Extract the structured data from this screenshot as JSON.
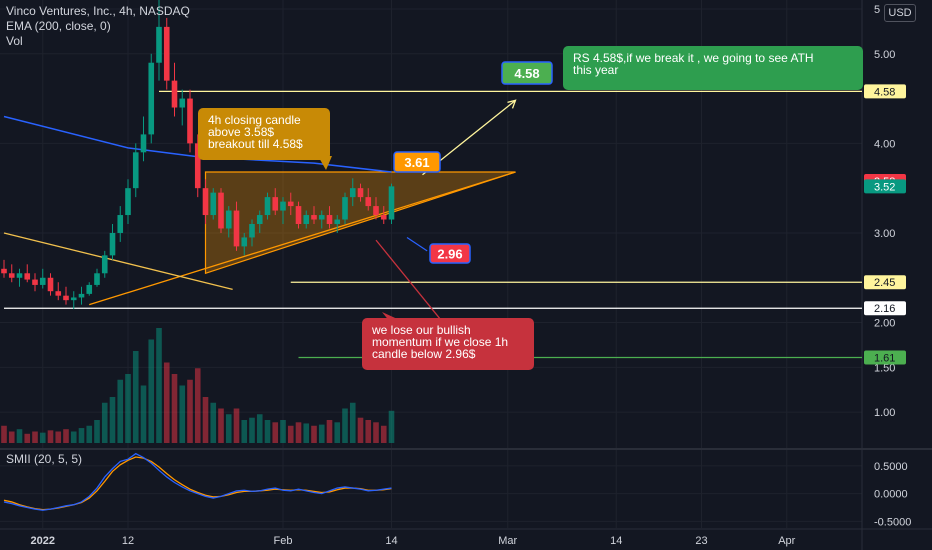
{
  "header": {
    "symbol_line": "Vinco Ventures, Inc., 4h, NASDAQ",
    "ema_label": "EMA (200, close, 0)",
    "vol_label": "Vol",
    "currency": "USD"
  },
  "oscillator": {
    "label": "SMII (20, 5, 5)",
    "ticks": [
      "0.5000",
      "0.0000",
      "-0.5000"
    ],
    "tick_values": [
      0.5,
      0.0,
      -0.5
    ],
    "range": [
      -0.62,
      0.75
    ]
  },
  "chart_data": {
    "type": "candlestick",
    "title": "Vinco Ventures, Inc., 4h, NASDAQ",
    "price_ticks": [
      "5",
      "5.00",
      "4.00",
      "3.00",
      "2.00",
      "1.50",
      "1.00"
    ],
    "price_tick_values": [
      5.5,
      5.0,
      4.0,
      3.0,
      2.0,
      1.5,
      1.0
    ],
    "ylim": [
      0.6,
      5.6
    ],
    "x_ticks": [
      "2022",
      "12",
      "Feb",
      "14",
      "Mar",
      "14",
      "23",
      "Apr"
    ],
    "x_tick_index": [
      5,
      16,
      36,
      50,
      65,
      79,
      90,
      101
    ],
    "candles": [
      [
        2.6,
        2.7,
        2.5,
        2.55
      ],
      [
        2.55,
        2.65,
        2.45,
        2.5
      ],
      [
        2.5,
        2.6,
        2.4,
        2.55
      ],
      [
        2.55,
        2.65,
        2.45,
        2.48
      ],
      [
        2.48,
        2.55,
        2.35,
        2.42
      ],
      [
        2.42,
        2.6,
        2.38,
        2.5
      ],
      [
        2.5,
        2.55,
        2.3,
        2.35
      ],
      [
        2.35,
        2.45,
        2.25,
        2.3
      ],
      [
        2.3,
        2.4,
        2.2,
        2.25
      ],
      [
        2.25,
        2.35,
        2.15,
        2.28
      ],
      [
        2.28,
        2.4,
        2.2,
        2.32
      ],
      [
        2.32,
        2.45,
        2.3,
        2.42
      ],
      [
        2.42,
        2.6,
        2.4,
        2.55
      ],
      [
        2.55,
        2.8,
        2.5,
        2.75
      ],
      [
        2.75,
        3.1,
        2.7,
        3.0
      ],
      [
        3.0,
        3.3,
        2.9,
        3.2
      ],
      [
        3.2,
        3.6,
        3.1,
        3.5
      ],
      [
        3.5,
        4.0,
        3.4,
        3.9
      ],
      [
        3.9,
        4.3,
        3.8,
        4.1
      ],
      [
        4.1,
        5.0,
        4.0,
        4.9
      ],
      [
        4.9,
        5.6,
        4.7,
        5.3
      ],
      [
        5.3,
        5.4,
        4.6,
        4.7
      ],
      [
        4.7,
        4.9,
        4.3,
        4.4
      ],
      [
        4.4,
        4.6,
        4.2,
        4.5
      ],
      [
        4.5,
        4.6,
        3.9,
        4.0
      ],
      [
        4.0,
        4.1,
        3.4,
        3.5
      ],
      [
        3.5,
        3.6,
        3.1,
        3.2
      ],
      [
        3.2,
        3.5,
        3.15,
        3.45
      ],
      [
        3.45,
        3.5,
        3.0,
        3.05
      ],
      [
        3.05,
        3.3,
        2.95,
        3.25
      ],
      [
        3.25,
        3.35,
        2.8,
        2.85
      ],
      [
        2.85,
        3.0,
        2.75,
        2.95
      ],
      [
        2.95,
        3.15,
        2.85,
        3.1
      ],
      [
        3.1,
        3.25,
        3.0,
        3.2
      ],
      [
        3.2,
        3.45,
        3.15,
        3.4
      ],
      [
        3.4,
        3.5,
        3.2,
        3.25
      ],
      [
        3.25,
        3.4,
        3.1,
        3.35
      ],
      [
        3.35,
        3.45,
        3.2,
        3.3
      ],
      [
        3.3,
        3.35,
        3.05,
        3.1
      ],
      [
        3.1,
        3.25,
        3.05,
        3.2
      ],
      [
        3.2,
        3.3,
        3.1,
        3.15
      ],
      [
        3.15,
        3.25,
        3.05,
        3.2
      ],
      [
        3.2,
        3.3,
        3.05,
        3.1
      ],
      [
        3.1,
        3.2,
        3.0,
        3.15
      ],
      [
        3.15,
        3.45,
        3.1,
        3.4
      ],
      [
        3.4,
        3.61,
        3.3,
        3.5
      ],
      [
        3.5,
        3.55,
        3.35,
        3.4
      ],
      [
        3.4,
        3.5,
        3.25,
        3.3
      ],
      [
        3.3,
        3.4,
        3.15,
        3.2
      ],
      [
        3.2,
        3.3,
        3.1,
        3.15
      ],
      [
        3.15,
        3.55,
        3.1,
        3.52
      ]
    ],
    "volumes": [
      0.15,
      0.1,
      0.12,
      0.08,
      0.1,
      0.09,
      0.11,
      0.1,
      0.12,
      0.1,
      0.13,
      0.15,
      0.2,
      0.35,
      0.4,
      0.55,
      0.6,
      0.8,
      0.5,
      0.9,
      1.0,
      0.7,
      0.6,
      0.5,
      0.55,
      0.65,
      0.4,
      0.35,
      0.3,
      0.25,
      0.3,
      0.2,
      0.22,
      0.25,
      0.2,
      0.18,
      0.2,
      0.15,
      0.18,
      0.17,
      0.15,
      0.16,
      0.2,
      0.18,
      0.3,
      0.35,
      0.22,
      0.2,
      0.18,
      0.15,
      0.28
    ],
    "ema200": [
      [
        0,
        4.3
      ],
      [
        16,
        3.95
      ],
      [
        25,
        3.85
      ],
      [
        40,
        3.78
      ],
      [
        50,
        3.68
      ]
    ],
    "smii": [
      -0.15,
      -0.18,
      -0.22,
      -0.25,
      -0.28,
      -0.3,
      -0.28,
      -0.25,
      -0.22,
      -0.2,
      -0.15,
      -0.05,
      0.1,
      0.3,
      0.45,
      0.58,
      0.62,
      0.72,
      0.65,
      0.55,
      0.42,
      0.3,
      0.2,
      0.12,
      0.05,
      0.0,
      -0.05,
      -0.08,
      -0.05,
      0.0,
      0.05,
      0.06,
      0.04,
      0.05,
      0.08,
      0.1,
      0.06,
      0.05,
      0.08,
      0.05,
      0.02,
      0.0,
      0.05,
      0.1,
      0.12,
      0.1,
      0.08,
      0.05,
      0.06,
      0.08,
      0.1
    ],
    "smii_signal": [
      -0.12,
      -0.15,
      -0.2,
      -0.24,
      -0.27,
      -0.29,
      -0.28,
      -0.26,
      -0.23,
      -0.2,
      -0.16,
      -0.08,
      0.05,
      0.22,
      0.4,
      0.52,
      0.6,
      0.66,
      0.64,
      0.58,
      0.48,
      0.36,
      0.25,
      0.16,
      0.08,
      0.02,
      -0.03,
      -0.06,
      -0.05,
      -0.02,
      0.02,
      0.04,
      0.04,
      0.05,
      0.06,
      0.08,
      0.07,
      0.06,
      0.07,
      0.06,
      0.04,
      0.02,
      0.03,
      0.07,
      0.1,
      0.1,
      0.09,
      0.06,
      0.06,
      0.07,
      0.09
    ]
  },
  "price_labels": [
    {
      "text": "4.58",
      "value": 4.58,
      "bg": "#fff59d",
      "fg": "#131722"
    },
    {
      "text": "3.58",
      "value": 3.58,
      "bg": "#f23645",
      "fg": "#ffffff"
    },
    {
      "text": "3.52",
      "value": 3.52,
      "bg": "#089981",
      "fg": "#ffffff"
    },
    {
      "text": "2.45",
      "value": 2.45,
      "bg": "#fff59d",
      "fg": "#131722"
    },
    {
      "text": "2.16",
      "value": 2.16,
      "bg": "#ffffff",
      "fg": "#131722"
    },
    {
      "text": "1.61",
      "value": 1.61,
      "bg": "#4caf50",
      "fg": "#131722"
    }
  ],
  "levels": [
    {
      "value": 4.58,
      "color": "#fff59d",
      "from": 20
    },
    {
      "value": 2.45,
      "color": "#fff59d",
      "from": 37
    },
    {
      "value": 2.16,
      "color": "#ffffff",
      "from": 0
    },
    {
      "value": 1.61,
      "color": "#4caf50",
      "from": 38
    }
  ],
  "annotations": {
    "breakout_note": [
      "4h closing candle",
      "above 3.58$",
      "breakout till 4.58$"
    ],
    "ath_note": [
      "RS 4.58$,if we break it , we going to see ATH",
      "this year"
    ],
    "bearish_note": [
      "we lose our bullish",
      "momentum if we close 1h",
      "candle below 2.96$"
    ],
    "target_label": "4.58",
    "resistance_label": "3.61",
    "support_label": "2.96"
  },
  "colors": {
    "up": "#089981",
    "down": "#f23645",
    "ema": "#2962ff",
    "smii": "#2962ff",
    "signal": "#ff9800",
    "triangle": "#ff9800",
    "breakout_box": "#c88a06",
    "ath_box": "#2e9e4f",
    "bearish_box": "#c6323d",
    "target_box": "#4caf50",
    "resist_box": "#ff9800",
    "support_box": "#f23645"
  }
}
